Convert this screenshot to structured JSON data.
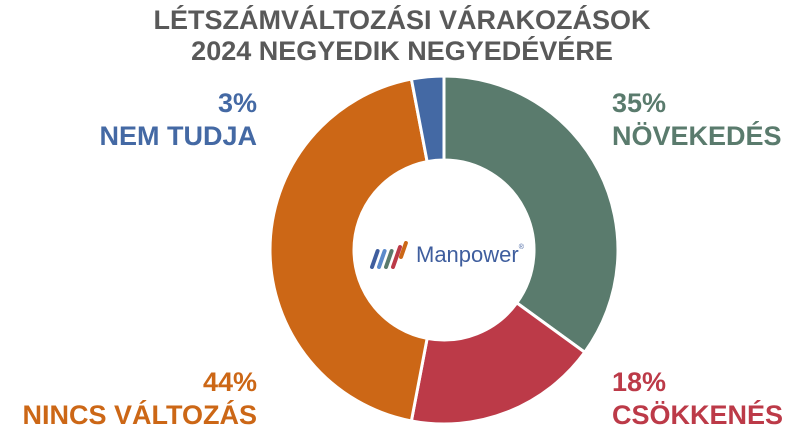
{
  "chart_data": {
    "type": "pie",
    "variant": "donut",
    "title": "LÉTSZÁMVÁLTOZÁSI VÁRAKOZÁSOK 2024 NEGYEDIK NEGYEDÉVÉRE",
    "categories": [
      "NÖVEKEDÉS",
      "CSÖKKENÉS",
      "NINCS VÁLTOZÁS",
      "NEM TUDJA"
    ],
    "values": [
      35,
      18,
      44,
      3
    ],
    "unit": "%",
    "colors": [
      "#5A7B6D",
      "#BC3A48",
      "#CC6716",
      "#4469A4"
    ],
    "start_angle": "12 o'clock, clockwise",
    "legend": "none (data labels outside)"
  },
  "title": {
    "line1": "LÉTSZÁMVÁLTOZÁSI VÁRAKOZÁSOK",
    "line2": "2024 NEGYEDIK NEGYEDÉVÉRE"
  },
  "labels": {
    "nem_tudja": {
      "pct": "3%",
      "name": "NEM TUDJA"
    },
    "novekedes": {
      "pct": "35%",
      "name": "NÖVEKEDÉS"
    },
    "nincs_valtozas": {
      "pct": "44%",
      "name": "NINCS VÁLTOZÁS"
    },
    "csokkenes": {
      "pct": "18%",
      "name": "CSÖKKENÉS"
    }
  },
  "logo": {
    "text": "Manpower",
    "reg": "®",
    "stripe_colors": [
      "#3F5E9E",
      "#5B8ACB",
      "#5A7B6D",
      "#BC3A48",
      "#CC6716"
    ]
  }
}
